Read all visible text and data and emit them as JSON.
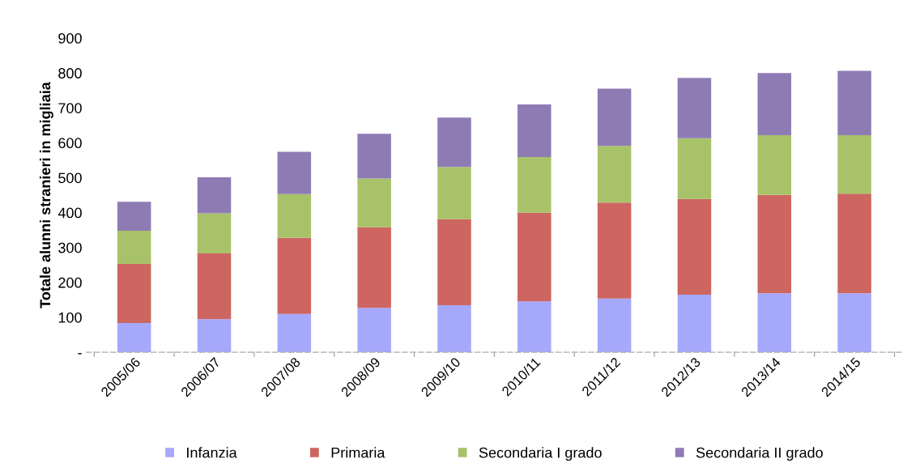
{
  "chart_data": {
    "type": "bar",
    "stacked": true,
    "ylabel": "Totale alunni stranieri in migliaia",
    "categories": [
      "2005/06",
      "2006/07",
      "2007/08",
      "2008/09",
      "2009/10",
      "2010/11",
      "2011/12",
      "2012/13",
      "2013/14",
      "2014/15"
    ],
    "series": [
      {
        "name": "Infanzia",
        "color": "#a6a8fb",
        "values": [
          84,
          95,
          110,
          127,
          135,
          146,
          154,
          165,
          169,
          169
        ]
      },
      {
        "name": "Primaria",
        "color": "#cd6560",
        "values": [
          169,
          188,
          218,
          231,
          246,
          254,
          275,
          274,
          282,
          285
        ]
      },
      {
        "name": "Secondaria I grado",
        "color": "#a8c26a",
        "values": [
          95,
          115,
          125,
          140,
          150,
          159,
          162,
          174,
          171,
          168
        ]
      },
      {
        "name": "Secondaria II grado",
        "color": "#8f7bb4",
        "values": [
          83,
          103,
          121,
          128,
          141,
          151,
          164,
          173,
          178,
          184
        ]
      }
    ],
    "ylim": [
      0,
      900
    ],
    "yticks": [
      {
        "value": 0,
        "label": "-"
      },
      100,
      200,
      300,
      400,
      500,
      600,
      700,
      800,
      900
    ],
    "grid": false,
    "legend": "bottom"
  }
}
